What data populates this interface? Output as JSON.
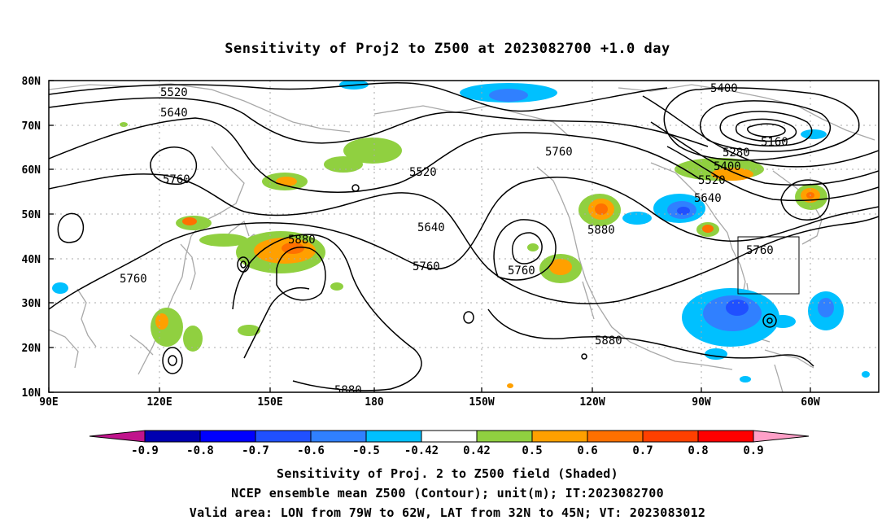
{
  "title": "Sensitivity of Proj2 to Z500 at 2023082700 +1.0 day",
  "lat_labels": [
    "80N",
    "70N",
    "60N",
    "50N",
    "40N",
    "30N",
    "20N",
    "10N"
  ],
  "lon_labels": [
    "90E",
    "120E",
    "150E",
    "180",
    "150W",
    "120W",
    "90W",
    "60W"
  ],
  "contour_labels": [
    "5520",
    "5640",
    "5760",
    "5760",
    "5520",
    "5760",
    "5400",
    "5160",
    "5280",
    "5400",
    "5520",
    "5640",
    "5880",
    "5640",
    "5760",
    "5760",
    "5880",
    "5760",
    "5880",
    "5880"
  ],
  "colorbar": {
    "ticks": [
      "-0.9",
      "-0.8",
      "-0.7",
      "-0.6",
      "-0.5",
      "-0.42",
      "0.42",
      "0.5",
      "0.6",
      "0.7",
      "0.8",
      "0.9"
    ],
    "colors": [
      "#0000b0",
      "#0000ff",
      "#2050ff",
      "#3080ff",
      "#00c0ff",
      "#ffffff",
      "#90d040",
      "#ffa000",
      "#ff7000",
      "#ff4000",
      "#ff0000"
    ],
    "low_end_color": "#c0148c",
    "high_end_color": "#ffa0c8"
  },
  "footer": {
    "line1": "Sensitivity of Proj. 2 to Z500 field (Shaded)",
    "line2": "NCEP ensemble mean Z500 (Contour); unit(m); IT:2023082700",
    "line3": "Valid area: LON from 79W to 62W, LAT from 32N to 45N; VT: 2023083012"
  },
  "valid_box": {
    "lon_min": -79,
    "lon_max": -62,
    "lat_min": 32,
    "lat_max": 45
  }
}
